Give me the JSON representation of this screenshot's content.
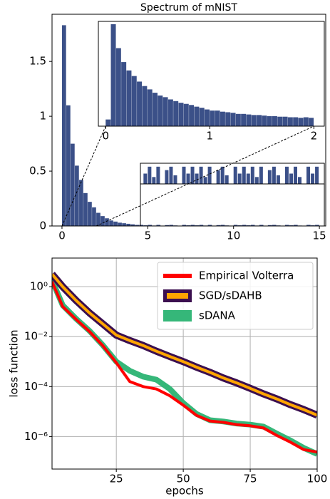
{
  "chart_data": [
    {
      "type": "histogram",
      "title": "Spectrum of mNIST",
      "color": "#3b5088",
      "bins": [
        0,
        0.25,
        0.5,
        0.75,
        1,
        1.25,
        1.5,
        1.75,
        2,
        2.25,
        2.5,
        2.75,
        3,
        3.25,
        3.5,
        3.75,
        4,
        4.25,
        4.5,
        4.75,
        5,
        5.25,
        5.5,
        5.75,
        6,
        6.25,
        6.5,
        6.75,
        7,
        7.25,
        7.5,
        7.75,
        8,
        8.25,
        8.5,
        8.75,
        9,
        9.25,
        9.5,
        9.75,
        10,
        10.25,
        10.5,
        10.75,
        11,
        11.25,
        11.5,
        11.75,
        12,
        12.25,
        12.5,
        12.75,
        13,
        13.25,
        13.5,
        13.75,
        14,
        14.25,
        14.5,
        14.75,
        15
      ],
      "counts": [
        1.83,
        1.1,
        0.75,
        0.55,
        0.42,
        0.3,
        0.22,
        0.17,
        0.12,
        0.09,
        0.07,
        0.05,
        0.04,
        0.03,
        0.025,
        0.02,
        0.015,
        0.01,
        0.01,
        0.006,
        0.01,
        0.004,
        0.01,
        0,
        0.008,
        0.01,
        0.005,
        0,
        0.01,
        0.006,
        0.01,
        0.006,
        0.01,
        0.004,
        0.01,
        0,
        0.008,
        0.01,
        0.005,
        0,
        0.01,
        0.006,
        0.01,
        0.006,
        0.01,
        0.004,
        0.01,
        0,
        0.008,
        0.01,
        0.005,
        0,
        0.01,
        0.006,
        0.01,
        0.004,
        0,
        0.01,
        0.006,
        0.01
      ],
      "xlim": [
        -0.58,
        15.37
      ],
      "ylim": [
        0,
        1.93
      ],
      "xticks": [
        0,
        5,
        10,
        15
      ],
      "yticks": [
        0,
        0.5,
        1,
        1.5
      ],
      "zoom": {
        "xlim": [
          4.57,
          15.29
        ],
        "ylim": [
          0,
          0.012
        ]
      }
    },
    {
      "type": "histogram",
      "color": "#3b5088",
      "bins": [
        0,
        0.05,
        0.1,
        0.15,
        0.2,
        0.25,
        0.3,
        0.35,
        0.4,
        0.45,
        0.5,
        0.55,
        0.6,
        0.65,
        0.7,
        0.75,
        0.8,
        0.85,
        0.9,
        0.95,
        1,
        1.05,
        1.1,
        1.15,
        1.2,
        1.25,
        1.3,
        1.35,
        1.4,
        1.45,
        1.5,
        1.55,
        1.6,
        1.65,
        1.7,
        1.75,
        1.8,
        1.85,
        1.9,
        1.95,
        2
      ],
      "counts": [
        0.12,
        1.83,
        1.4,
        1.15,
        1.0,
        0.9,
        0.8,
        0.72,
        0.66,
        0.6,
        0.55,
        0.52,
        0.48,
        0.45,
        0.42,
        0.4,
        0.38,
        0.35,
        0.33,
        0.3,
        0.28,
        0.28,
        0.26,
        0.25,
        0.24,
        0.22,
        0.22,
        0.21,
        0.2,
        0.2,
        0.19,
        0.18,
        0.18,
        0.17,
        0.17,
        0.16,
        0.16,
        0.15,
        0.16,
        0.15
      ],
      "xlim": [
        -0.07,
        2.1
      ],
      "ylim": [
        0,
        1.88
      ],
      "xticks": [
        0,
        1,
        2
      ]
    },
    {
      "type": "line",
      "log_y": true,
      "grid": true,
      "legend": "upper right",
      "xlabel": "epochs",
      "ylabel": "loss function",
      "x": [
        1,
        5,
        10,
        15,
        20,
        25,
        30,
        35,
        40,
        45,
        50,
        55,
        60,
        65,
        70,
        75,
        80,
        85,
        90,
        95,
        100
      ],
      "series": [
        {
          "name": "Empirical Volterra",
          "color": "#ff0000",
          "values": [
            1.6,
            0.16,
            0.049,
            0.016,
            0.0043,
            0.0009,
            0.00016,
            0.0001,
            8e-05,
            4.3e-05,
            1.8e-05,
            7e-06,
            4.2e-06,
            3.7e-06,
            3e-06,
            2.7e-06,
            2.2e-06,
            1.1e-06,
            6e-07,
            3e-07,
            2.4e-07
          ]
        },
        {
          "name": "SGD/sDAHB",
          "color": "#ffa500",
          "edge_color": "#3b0f4f",
          "values": [
            3.2,
            1,
            0.28,
            0.089,
            0.032,
            0.0115,
            0.007,
            0.0044,
            0.0026,
            0.0016,
            0.001,
            0.0006,
            0.00037,
            0.00022,
            0.00014,
            8.5e-05,
            5.1e-05,
            3.2e-05,
            1.9e-05,
            1.2e-05,
            7.2e-06
          ]
        },
        {
          "name": "sDANA",
          "color": "#35b779",
          "values": [
            1.8,
            0.18,
            0.052,
            0.017,
            0.0045,
            0.001,
            0.00043,
            0.00025,
            0.00019,
            8e-05,
            2.2e-05,
            8e-06,
            4.5e-06,
            4e-06,
            3.3e-06,
            3e-06,
            2.5e-06,
            1.3e-06,
            7e-07,
            3.5e-07,
            2e-07
          ]
        }
      ],
      "xlim": [
        1,
        100
      ],
      "ylim": [
        5e-08,
        14
      ],
      "xticks": [
        25,
        50,
        75,
        100
      ],
      "yticks": [
        {
          "value": 1e-06,
          "label": "10⁻⁶"
        },
        {
          "value": 0.0001,
          "label": "10⁻⁴"
        },
        {
          "value": 0.01,
          "label": "10⁻²"
        },
        {
          "value": 1,
          "label": "10⁰"
        }
      ]
    }
  ]
}
